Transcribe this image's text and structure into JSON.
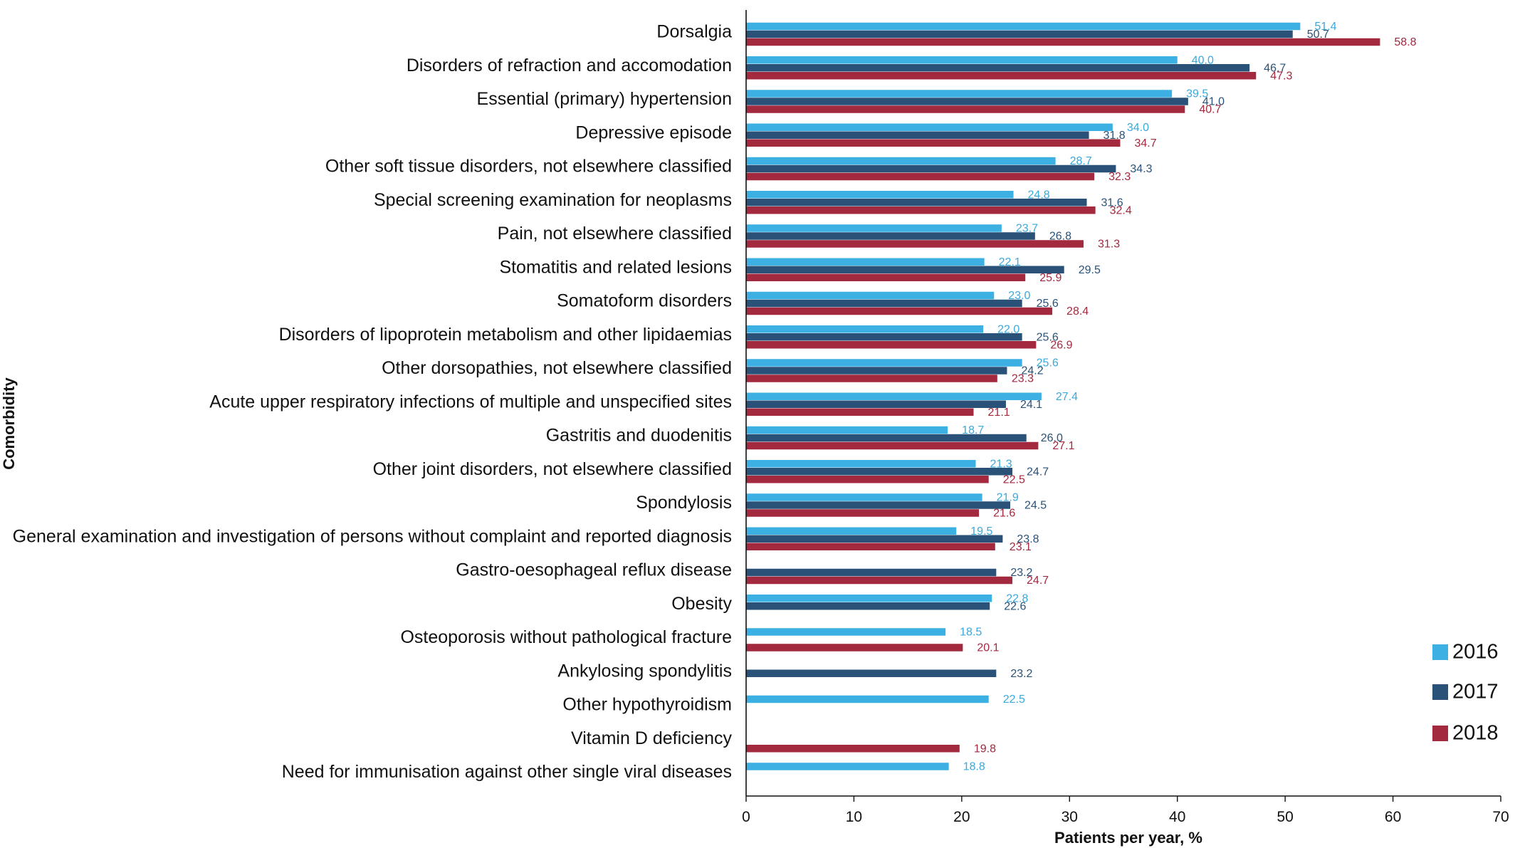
{
  "chart_data": {
    "type": "bar",
    "orientation": "horizontal",
    "xlabel": "Patients per year, %",
    "ylabel": "Comorbidity",
    "xlim": [
      0,
      70
    ],
    "xticks": [
      0,
      10,
      20,
      30,
      40,
      50,
      60,
      70
    ],
    "grid": false,
    "legend_position": "bottom-right",
    "categories": [
      "Dorsalgia",
      "Disorders of refraction and accomodation",
      "Essential (primary) hypertension",
      "Depressive episode",
      "Other soft tissue disorders, not elsewhere classified",
      "Special screening examination for neoplasms",
      "Pain, not elsewhere classified",
      "Stomatitis and related lesions",
      "Somatoform disorders",
      "Disorders of lipoprotein metabolism and other lipidaemias",
      "Other dorsopathies, not elsewhere classified",
      "Acute upper respiratory infections of multiple and unspecified sites",
      "Gastritis and duodenitis",
      "Other joint disorders, not elsewhere classified",
      "Spondylosis",
      "General examination and investigation of persons without complaint and reported diagnosis",
      "Gastro-oesophageal reflux disease",
      "Obesity",
      "Osteoporosis without pathological fracture",
      "Ankylosing spondylitis",
      "Other hypothyroidism",
      "Vitamin D deficiency",
      "Need for immunisation against other single viral diseases"
    ],
    "series": [
      {
        "name": "2016",
        "color": "#3db0e3",
        "label_color": "#3aa9dc",
        "values": [
          51.4,
          40.0,
          39.5,
          34.0,
          28.7,
          24.8,
          23.7,
          22.1,
          23.0,
          22.0,
          25.6,
          27.4,
          18.7,
          21.3,
          21.9,
          19.5,
          null,
          22.8,
          18.5,
          null,
          22.5,
          null,
          18.8
        ],
        "labels": [
          "51.4",
          "40.0",
          "39.5",
          "34.0",
          "28.7",
          "24.8",
          "23.7",
          "22.1",
          "23.0",
          "22.0",
          "25.6",
          "27.4",
          "18.7",
          "21.3",
          "21.9",
          "19.5",
          null,
          "22.8",
          "18.5",
          null,
          "22.5",
          null,
          "18.8"
        ]
      },
      {
        "name": "2017",
        "color": "#2a5278",
        "label_color": "#2a5278",
        "values": [
          50.7,
          46.7,
          41.0,
          31.8,
          34.3,
          31.6,
          26.8,
          29.5,
          25.6,
          25.6,
          24.2,
          24.1,
          26.0,
          24.7,
          24.5,
          23.8,
          23.2,
          22.6,
          null,
          23.2,
          null,
          null,
          null
        ],
        "labels": [
          "50.7",
          "46.7",
          "41.0",
          "31.8",
          "34.3",
          "31.6",
          "26.8",
          "29.5",
          "25.6",
          "25.6",
          "24.2",
          "24.1",
          "26.0",
          "24.7",
          "24.5",
          "23.8",
          "23.2",
          "22.6",
          null,
          "23.2",
          null,
          null,
          null
        ]
      },
      {
        "name": "2018",
        "color": "#a3293f",
        "label_color": "#a3293f",
        "values": [
          58.8,
          47.3,
          40.7,
          34.7,
          32.3,
          32.4,
          31.3,
          25.9,
          28.4,
          26.9,
          23.3,
          21.1,
          27.1,
          22.5,
          21.6,
          23.1,
          24.7,
          null,
          20.1,
          null,
          null,
          19.8,
          null
        ],
        "labels": [
          "58.8",
          "47.3",
          "40.7",
          "34.7",
          "32.3",
          "32.4",
          "31.3",
          "25.9",
          "28.4",
          "26.9",
          "23.3",
          "21.1",
          "27.1",
          "22.5",
          "21.6",
          "23.1",
          "24.7",
          null,
          "20.1",
          null,
          null,
          "19.8",
          null
        ]
      }
    ]
  }
}
